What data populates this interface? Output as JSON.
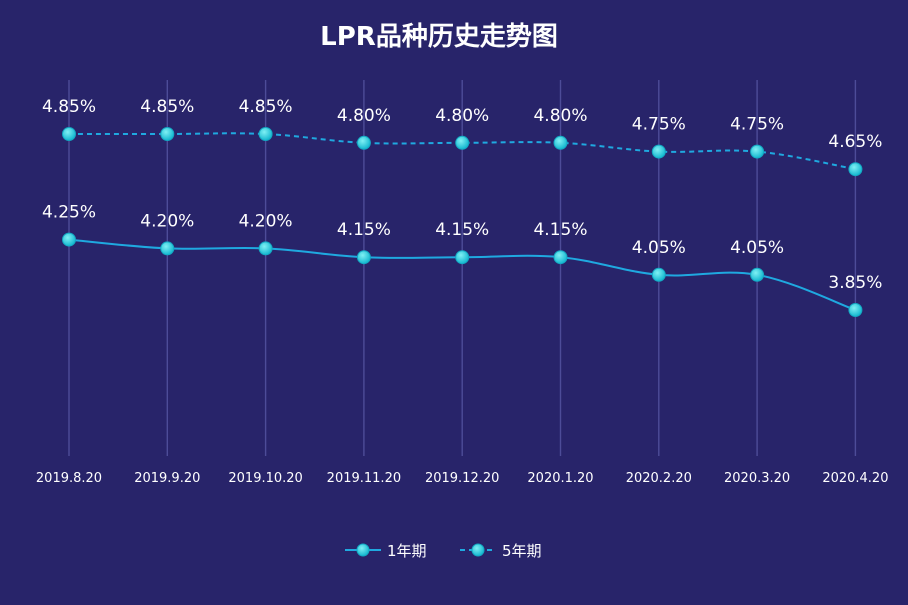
{
  "chart_data": {
    "type": "line",
    "title": "LPR品种历史走势图",
    "categories": [
      "2019.8.20",
      "2019.9.20",
      "2019.10.20",
      "2019.11.20",
      "2019.12.20",
      "2020.1.20",
      "2020.2.20",
      "2020.3.20",
      "2020.4.20"
    ],
    "series": [
      {
        "name": "1年期",
        "values": [
          4.25,
          4.2,
          4.2,
          4.15,
          4.15,
          4.15,
          4.05,
          4.05,
          3.85
        ],
        "labels": [
          "4.25%",
          "4.20%",
          "4.20%",
          "4.15%",
          "4.15%",
          "4.15%",
          "4.05%",
          "4.05%",
          "3.85%"
        ],
        "line_style": "solid",
        "color": "#1fa9e0"
      },
      {
        "name": "5年期",
        "values": [
          4.85,
          4.85,
          4.85,
          4.8,
          4.8,
          4.8,
          4.75,
          4.75,
          4.65
        ],
        "labels": [
          "4.85%",
          "4.85%",
          "4.85%",
          "4.80%",
          "4.80%",
          "4.80%",
          "4.75%",
          "4.75%",
          "4.65%"
        ],
        "line_style": "dashed",
        "color": "#1fa9e0"
      }
    ],
    "grid": "vertical",
    "legend": "bottom-center",
    "marker_color": "#1ec8dc",
    "background": "#28246a"
  }
}
